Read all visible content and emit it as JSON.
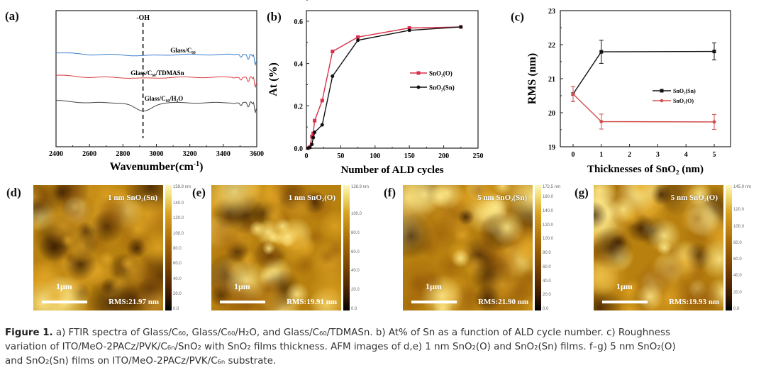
{
  "panels": {
    "a": {
      "label": "(a)"
    },
    "b": {
      "label": "(b)"
    },
    "c": {
      "label": "(c)"
    },
    "d": {
      "label": "(d)"
    },
    "e": {
      "label": "(e)"
    },
    "f": {
      "label": "(f)"
    },
    "g": {
      "label": "(g)"
    }
  },
  "chart_data": [
    {
      "id": "a",
      "type": "line",
      "title": "",
      "xlabel": "Wavenumber(cm⁻¹)",
      "ylabel": "",
      "xlim": [
        2400,
        3600
      ],
      "xticks": [
        2400,
        2600,
        2800,
        3000,
        3200,
        3400,
        3600
      ],
      "annotation": {
        "text": "-OH",
        "x": 2920,
        "style": "dashed vertical line"
      },
      "series": [
        {
          "name": "Glass/C60",
          "label_text": "Glass/C₆₀",
          "color": "#3a7fd0",
          "offset": 0.0,
          "features": "flat baseline with oscillating absorption dips above 3450"
        },
        {
          "name": "Glass/C60/TDMASn",
          "label_text": "Glass/C₆₀/TDMASn",
          "color": "#d94040",
          "offset": -1.0,
          "features": "flat baseline with oscillating absorption dips above 3450"
        },
        {
          "name": "Glass/C60/H2O",
          "label_text": "Glass/C₆₀/H₂O",
          "color": "#444444",
          "offset": -2.0,
          "features": "broad dip centered near 2920 (-OH) plus oscillating dips above 3450"
        }
      ]
    },
    {
      "id": "b",
      "type": "line",
      "title": "",
      "xlabel": "Number of ALD cycles",
      "ylabel": "At (%)",
      "xlim": [
        0,
        250
      ],
      "ylim": [
        0,
        0.65
      ],
      "xticks": [
        0,
        50,
        100,
        150,
        200,
        250
      ],
      "yticks": [
        0.0,
        0.2,
        0.4,
        0.6
      ],
      "ytick_labels": [
        "0.0",
        "0.2",
        "0.4",
        "0.6"
      ],
      "legend": "center-right",
      "series": [
        {
          "name": "SnO2(O)",
          "label_text": "SnO₂(O)",
          "color": "#d6304a",
          "marker": "square",
          "x": [
            2,
            5,
            8,
            10,
            12,
            23,
            38,
            75,
            150,
            225
          ],
          "y": [
            0.0,
            0.005,
            0.055,
            0.07,
            0.13,
            0.225,
            0.457,
            0.525,
            0.568,
            0.573
          ]
        },
        {
          "name": "SnO2(Sn)",
          "label_text": "SnO₂(Sn)",
          "color": "#111111",
          "marker": "circle",
          "x": [
            2,
            5,
            8,
            10,
            12,
            23,
            38,
            75,
            150,
            225
          ],
          "y": [
            0.0,
            0.003,
            0.018,
            0.05,
            0.075,
            0.11,
            0.34,
            0.51,
            0.557,
            0.573
          ]
        }
      ]
    },
    {
      "id": "c",
      "type": "line",
      "title": "",
      "xlabel": "Thicknesses of SnO₂ (nm)",
      "ylabel": "RMS (nm)",
      "ylim": [
        19,
        23
      ],
      "yticks": [
        19,
        20,
        21,
        22,
        23
      ],
      "xticks": [
        "0",
        "1",
        "2",
        "3",
        "4",
        "5"
      ],
      "legend": "center-right",
      "series": [
        {
          "name": "SnO2(Sn)",
          "label_text": "SnO₂(Sn)",
          "color": "#111111",
          "marker": "square",
          "x": [
            0,
            1,
            5
          ],
          "y": [
            20.55,
            21.79,
            21.8
          ],
          "err": [
            0.22,
            0.34,
            0.25
          ]
        },
        {
          "name": "SnO2(O)",
          "label_text": "SnO₂(O)",
          "color": "#d05050",
          "marker": "circle",
          "x": [
            0,
            1,
            5
          ],
          "y": [
            20.55,
            19.74,
            19.73
          ],
          "err": [
            0.22,
            0.22,
            0.22
          ]
        }
      ]
    }
  ],
  "afm": [
    {
      "id": "d",
      "title": "1 nm SnO₂(Sn)",
      "scale": "1μm",
      "rms": "RMS:21.97 nm",
      "cbar_max": "159.9 nm",
      "cbar_ticks": [
        "140.0",
        "120.0",
        "100.0",
        "80.0",
        "60.0",
        "40.0",
        "20.0",
        "0.0"
      ]
    },
    {
      "id": "e",
      "title": "1 nm SnO₂(O)",
      "scale": "1μm",
      "rms": "RMS:19.91 nm",
      "cbar_max": "126.9 nm",
      "cbar_ticks": [
        "100.0",
        "80.0",
        "60.0",
        "40.0",
        "20.0",
        "0.0"
      ]
    },
    {
      "id": "f",
      "title": "5 nm SnO₂(Sn)",
      "scale": "1μm",
      "rms": "RMS:21.90 nm",
      "cbar_max": "172.5 nm",
      "cbar_ticks": [
        "160.0",
        "140.0",
        "120.0",
        "100.0",
        "80.0",
        "60.0",
        "40.0",
        "20.0",
        "0.0"
      ]
    },
    {
      "id": "g",
      "title": "5 nm SnO₂(O)",
      "scale": "1μm",
      "rms": "RMS:19.93 nm",
      "cbar_max": "145.9 nm",
      "cbar_ticks": [
        "120.0",
        "100.0",
        "80.0",
        "60.0",
        "40.0",
        "20.0",
        "0.0"
      ]
    }
  ],
  "caption": {
    "figure_label": "Figure 1.",
    "line1": " a) FTIR spectra of Glass/C₆₀, Glass/C₆₀/H₂O, and Glass/C₆₀/TDMASn. b) At% of Sn as a function of ALD cycle number. c) Roughness",
    "line2": "variation of ITO/MeO-2PACz/PVK/C₆ₙ/SnO₂ with SnO₂ films thickness. AFM images of d,e) 1 nm SnO₂(O) and SnO₂(Sn) films. f–g) 5 nm SnO₂(O)",
    "line3": "and SnO₂(Sn) films on ITO/MeO-2PACz/PVK/C₆ₙ substrate."
  }
}
